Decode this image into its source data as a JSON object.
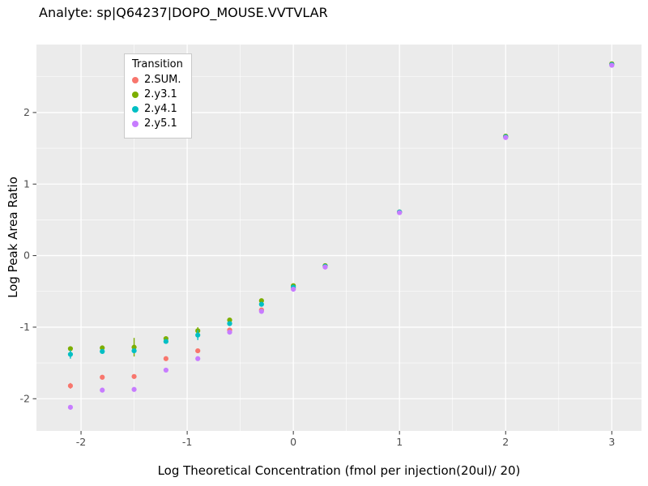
{
  "header": {
    "title": "Analyte: sp|Q64237|DOPO_MOUSE.VVTVLAR"
  },
  "chart_data": {
    "type": "scatter",
    "title": "Analyte: sp|Q64237|DOPO_MOUSE.VVTVLAR",
    "xlabel": "Log Theoretical Concentration (fmol per injection(20ul)/ 20)",
    "ylabel": "Log Peak Area Ratio",
    "xlim": [
      -2.42,
      3.28
    ],
    "ylim": [
      -2.45,
      2.95
    ],
    "x_ticks": [
      -2,
      -1,
      0,
      1,
      2,
      3
    ],
    "y_ticks": [
      -2,
      -1,
      0,
      1,
      2
    ],
    "x_minor": [
      -1.5,
      -0.5,
      0.5,
      1.5,
      2.5
    ],
    "y_minor": [
      -1.5,
      -0.5,
      0.5,
      1.5,
      2.5
    ],
    "panel_bg": "#EBEBEB",
    "grid_color": "#FFFFFF",
    "tick_color": "#333333",
    "tick_label_color": "#4D4D4D",
    "legend": {
      "title": "Transition",
      "position": "inside-top-left"
    },
    "series": [
      {
        "name": "2.SUM.",
        "color": "#F8766D",
        "points": [
          [
            -2.1,
            -1.82,
            0.04
          ],
          [
            -1.8,
            -1.7
          ],
          [
            -1.5,
            -1.69
          ],
          [
            -1.2,
            -1.44
          ],
          [
            -0.9,
            -1.33
          ],
          [
            -0.6,
            -1.04
          ],
          [
            -0.3,
            -0.76
          ],
          [
            0,
            -0.46
          ],
          [
            0.3,
            -0.15
          ],
          [
            1,
            0.61
          ],
          [
            2,
            1.66
          ],
          [
            3,
            2.68
          ]
        ]
      },
      {
        "name": "2.y3.1",
        "color": "#7CAE00",
        "points": [
          [
            -2.1,
            -1.3
          ],
          [
            -1.8,
            -1.29
          ],
          [
            -1.5,
            -1.28,
            0.13
          ],
          [
            -1.2,
            -1.16
          ],
          [
            -0.9,
            -1.05,
            0.05
          ],
          [
            -0.6,
            -0.9
          ],
          [
            -0.3,
            -0.63
          ],
          [
            0,
            -0.42
          ],
          [
            0.3,
            -0.14
          ],
          [
            1,
            0.61
          ],
          [
            2,
            1.67
          ],
          [
            3,
            2.68
          ]
        ]
      },
      {
        "name": "2.y4.1",
        "color": "#00BFC4",
        "points": [
          [
            -2.1,
            -1.38,
            0.06
          ],
          [
            -1.8,
            -1.34
          ],
          [
            -1.5,
            -1.33
          ],
          [
            -1.2,
            -1.2
          ],
          [
            -0.9,
            -1.11,
            0.07
          ],
          [
            -0.6,
            -0.95
          ],
          [
            -0.3,
            -0.68
          ],
          [
            0,
            -0.44
          ],
          [
            0.3,
            -0.15
          ],
          [
            1,
            0.61
          ],
          [
            2,
            1.66
          ],
          [
            3,
            2.67
          ]
        ]
      },
      {
        "name": "2.y5.1",
        "color": "#C77CFF",
        "points": [
          [
            -2.1,
            -2.12
          ],
          [
            -1.8,
            -1.88
          ],
          [
            -1.5,
            -1.87
          ],
          [
            -1.2,
            -1.6
          ],
          [
            -0.9,
            -1.44
          ],
          [
            -0.6,
            -1.07
          ],
          [
            -0.3,
            -0.78
          ],
          [
            0,
            -0.47
          ],
          [
            0.3,
            -0.16
          ],
          [
            1,
            0.6
          ],
          [
            2,
            1.65
          ],
          [
            3,
            2.66
          ]
        ]
      }
    ]
  }
}
